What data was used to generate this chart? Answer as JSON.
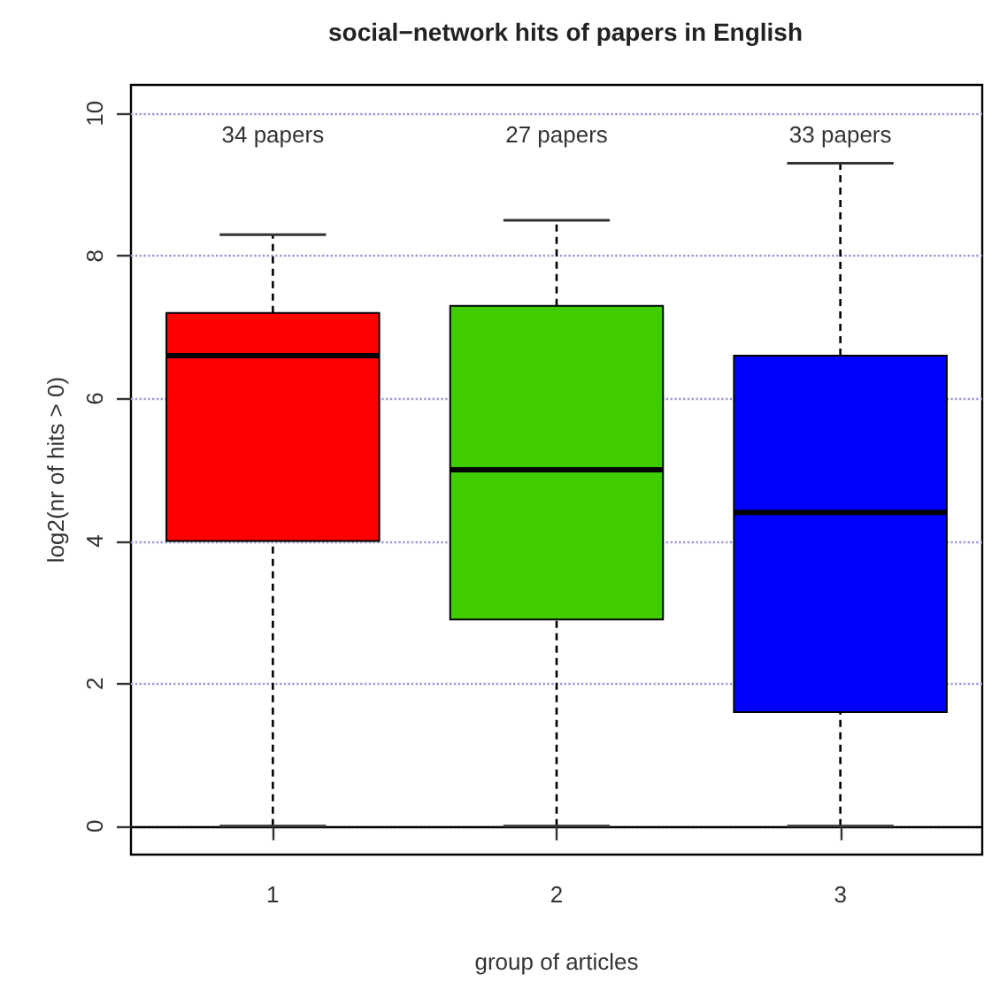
{
  "chart_data": {
    "type": "box",
    "title": "social−network hits of papers in English",
    "xlabel": "group of articles",
    "ylabel": "log2(nr of hits > 0)",
    "categories": [
      "1",
      "2",
      "3"
    ],
    "boxes": [
      {
        "low": 0,
        "q1": 4.0,
        "median": 6.6,
        "q3": 7.2,
        "high": 8.3
      },
      {
        "low": 0,
        "q1": 2.9,
        "median": 5.0,
        "q3": 7.3,
        "high": 8.5
      },
      {
        "low": 0,
        "q1": 1.6,
        "median": 4.4,
        "q3": 6.6,
        "high": 9.3
      }
    ],
    "colors": [
      "#ff0000",
      "#3fcc00",
      "#0000ff"
    ],
    "ylim": [
      -0.4,
      10.4
    ],
    "yticks": [
      0,
      2,
      4,
      6,
      8,
      10
    ],
    "grid": "y",
    "annotations": [
      "34 papers",
      "27 papers",
      "33 papers"
    ]
  }
}
